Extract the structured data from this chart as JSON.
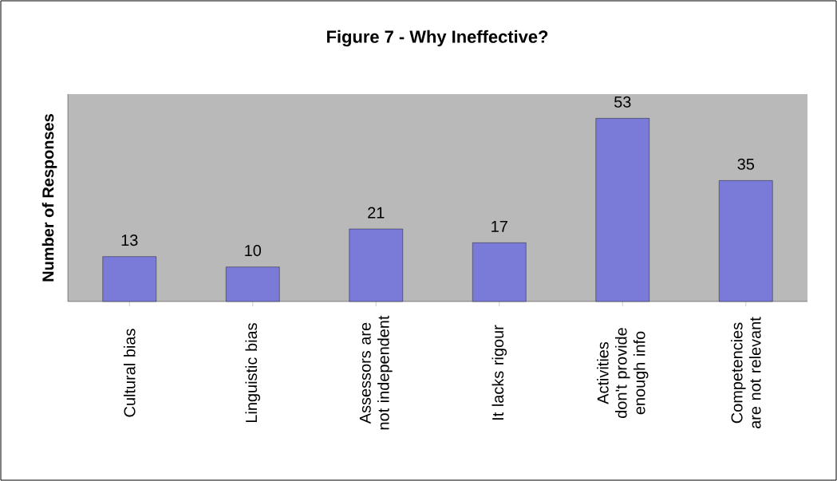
{
  "chart_data": {
    "type": "bar",
    "title": "Figure 7 - Why Ineffective?",
    "ylabel": "Number of Responses",
    "categories": [
      "Cultural bias",
      "Linguistic bias",
      "Assessors are not independent",
      "It lacks rigour",
      "Activities don't provide enough info",
      "Competencies are not relevant"
    ],
    "values": [
      13,
      10,
      21,
      17,
      53,
      35
    ],
    "color": "#7a7ad8",
    "ylim": [
      0,
      60
    ],
    "data_labels": true,
    "tick_labels": "x"
  }
}
